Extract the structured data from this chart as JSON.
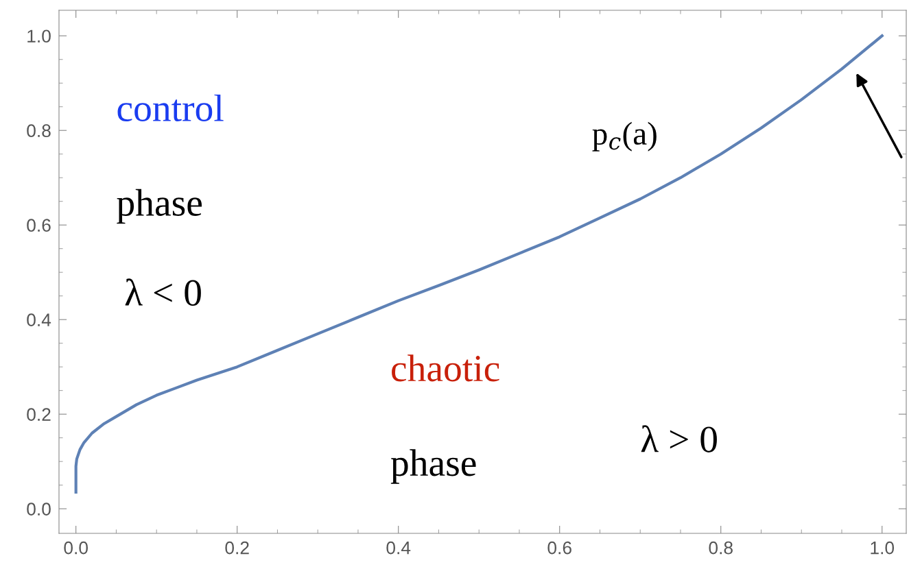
{
  "chart_data": {
    "type": "line",
    "annotations": [
      "control",
      "phase",
      "λ < 0",
      "chaotic",
      "phase",
      "λ > 0",
      "p$_{c}$(a)"
    ],
    "series": [
      {
        "color": "#5e81b5",
        "x": [
          0.0,
          0.0,
          0.001,
          0.005,
          0.01,
          0.02,
          0.035,
          0.05,
          0.075,
          0.1,
          0.15,
          0.2,
          0.25,
          0.3,
          0.35,
          0.4,
          0.45,
          0.5,
          0.55,
          0.6,
          0.65,
          0.7,
          0.75,
          0.8,
          0.85,
          0.9,
          0.95,
          1.0
        ],
        "values": [
          0.035,
          0.09,
          0.105,
          0.125,
          0.14,
          0.16,
          0.18,
          0.195,
          0.22,
          0.24,
          0.272,
          0.3,
          0.335,
          0.37,
          0.405,
          0.44,
          0.472,
          0.505,
          0.54,
          0.575,
          0.615,
          0.655,
          0.7,
          0.75,
          0.805,
          0.865,
          0.93,
          1.0
        ]
      }
    ],
    "xlim": [
      -0.021,
      1.03
    ],
    "ylim": [
      -0.052,
      1.054
    ],
    "xticks": [
      {
        "value": 0.0,
        "label": "0.0"
      },
      {
        "value": 0.2,
        "label": "0.2"
      },
      {
        "value": 0.4,
        "label": "0.4"
      },
      {
        "value": 0.6,
        "label": "0.6"
      },
      {
        "value": 0.8,
        "label": "0.8"
      },
      {
        "value": 1.0,
        "label": "1.0"
      }
    ],
    "yticks": [
      {
        "value": 0.0,
        "label": "0.0"
      },
      {
        "value": 0.2,
        "label": "0.2"
      },
      {
        "value": 0.4,
        "label": "0.4"
      },
      {
        "value": 0.6,
        "label": "0.6"
      },
      {
        "value": 0.8,
        "label": "0.8"
      },
      {
        "value": 1.0,
        "label": "1.0"
      }
    ],
    "grid": false,
    "legend": false,
    "marker": "none",
    "line_style": "solid"
  }
}
